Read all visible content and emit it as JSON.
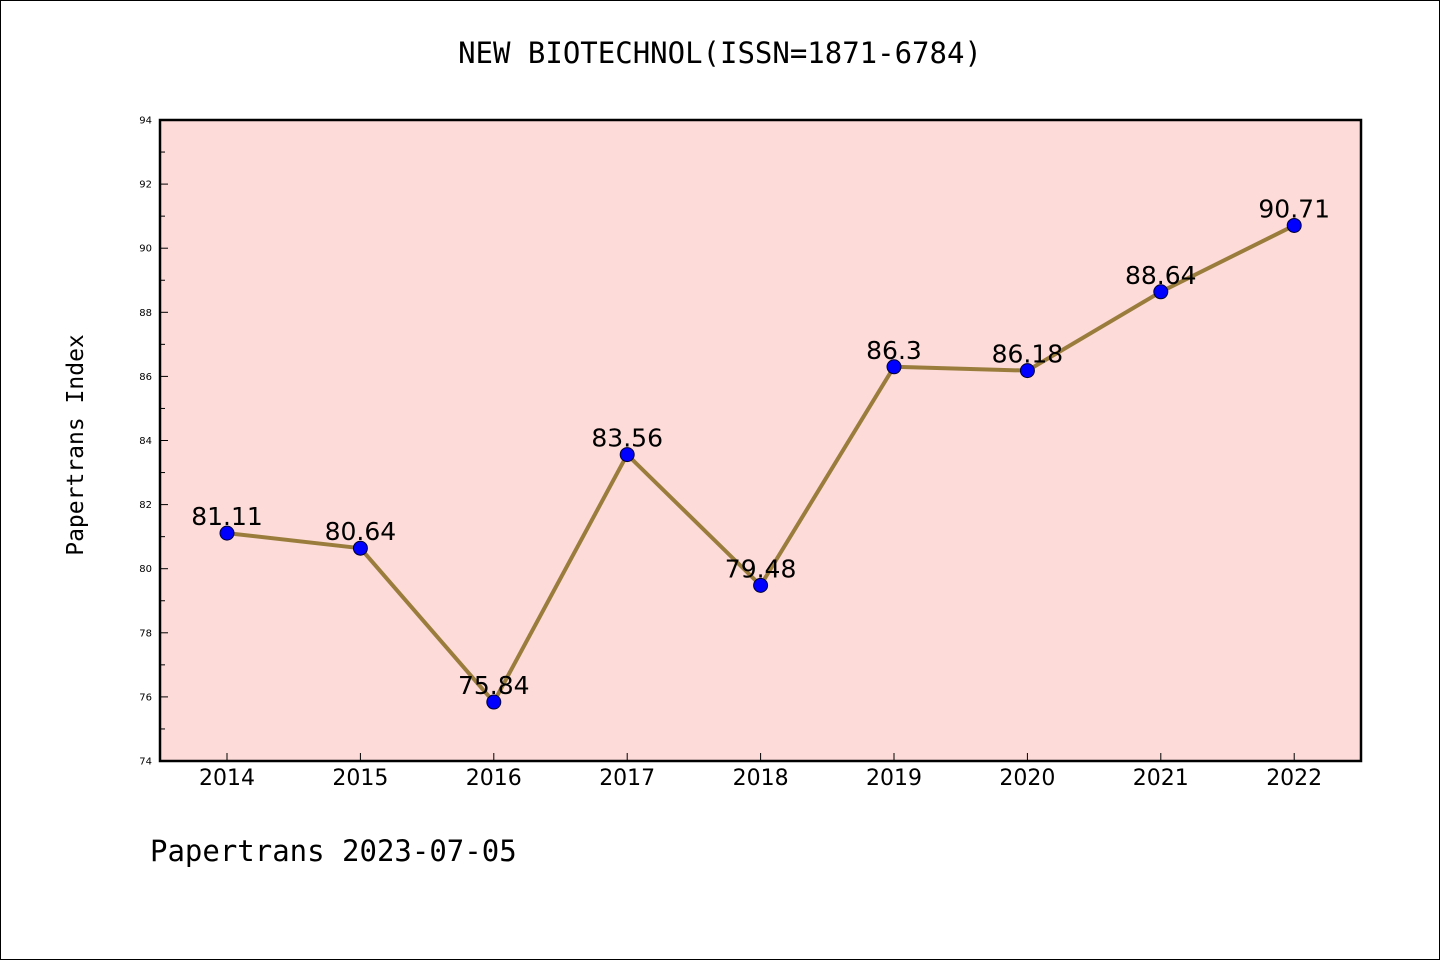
{
  "title": "NEW BIOTECHNOL(ISSN=1871-6784)",
  "footer": "Papertrans 2023-07-05",
  "colors": {
    "plot_background": "#fddbd8",
    "line": "#9a7d3c",
    "marker": "#0000ff",
    "frame": "#000000"
  },
  "chart_data": {
    "type": "line",
    "title": "NEW BIOTECHNOL(ISSN=1871-6784)",
    "xlabel": "",
    "ylabel": "Papertrans Index",
    "categories": [
      "2014",
      "2015",
      "2016",
      "2017",
      "2018",
      "2019",
      "2020",
      "2021",
      "2022"
    ],
    "values": [
      81.11,
      80.64,
      75.84,
      83.56,
      79.48,
      86.3,
      86.18,
      88.64,
      90.71
    ],
    "data_labels": [
      "81.11",
      "80.64",
      "75.84",
      "83.56",
      "79.48",
      "86.3",
      "86.18",
      "88.64",
      "90.71"
    ],
    "ylim": [
      74,
      94
    ],
    "yticks": [
      "74",
      "76",
      "78",
      "80",
      "82",
      "84",
      "86",
      "88",
      "90",
      "92",
      "94"
    ],
    "grid": false,
    "legend": "none"
  }
}
